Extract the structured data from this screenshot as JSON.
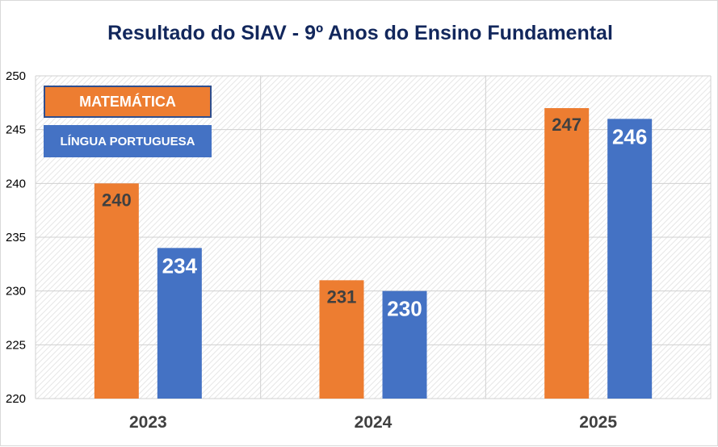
{
  "chart_data": {
    "type": "bar",
    "title": "Resultado do SIAV - 9º Anos do Ensino Fundamental",
    "categories": [
      "2023",
      "2024",
      "2025"
    ],
    "series": [
      {
        "name": "MATEMÁTICA",
        "values": [
          240,
          231,
          247
        ],
        "color": "#ed7d31",
        "label_color": "#404040"
      },
      {
        "name": "LÍNGUA PORTUGUESA",
        "values": [
          234,
          230,
          246
        ],
        "color": "#4472c4",
        "label_color": "#ffffff"
      }
    ],
    "ylim": [
      220,
      250
    ],
    "yticks": [
      "220",
      "225",
      "230",
      "235",
      "240",
      "245",
      "250"
    ],
    "xlabel": "",
    "ylabel": "",
    "grid": true,
    "legend": "top-left"
  }
}
